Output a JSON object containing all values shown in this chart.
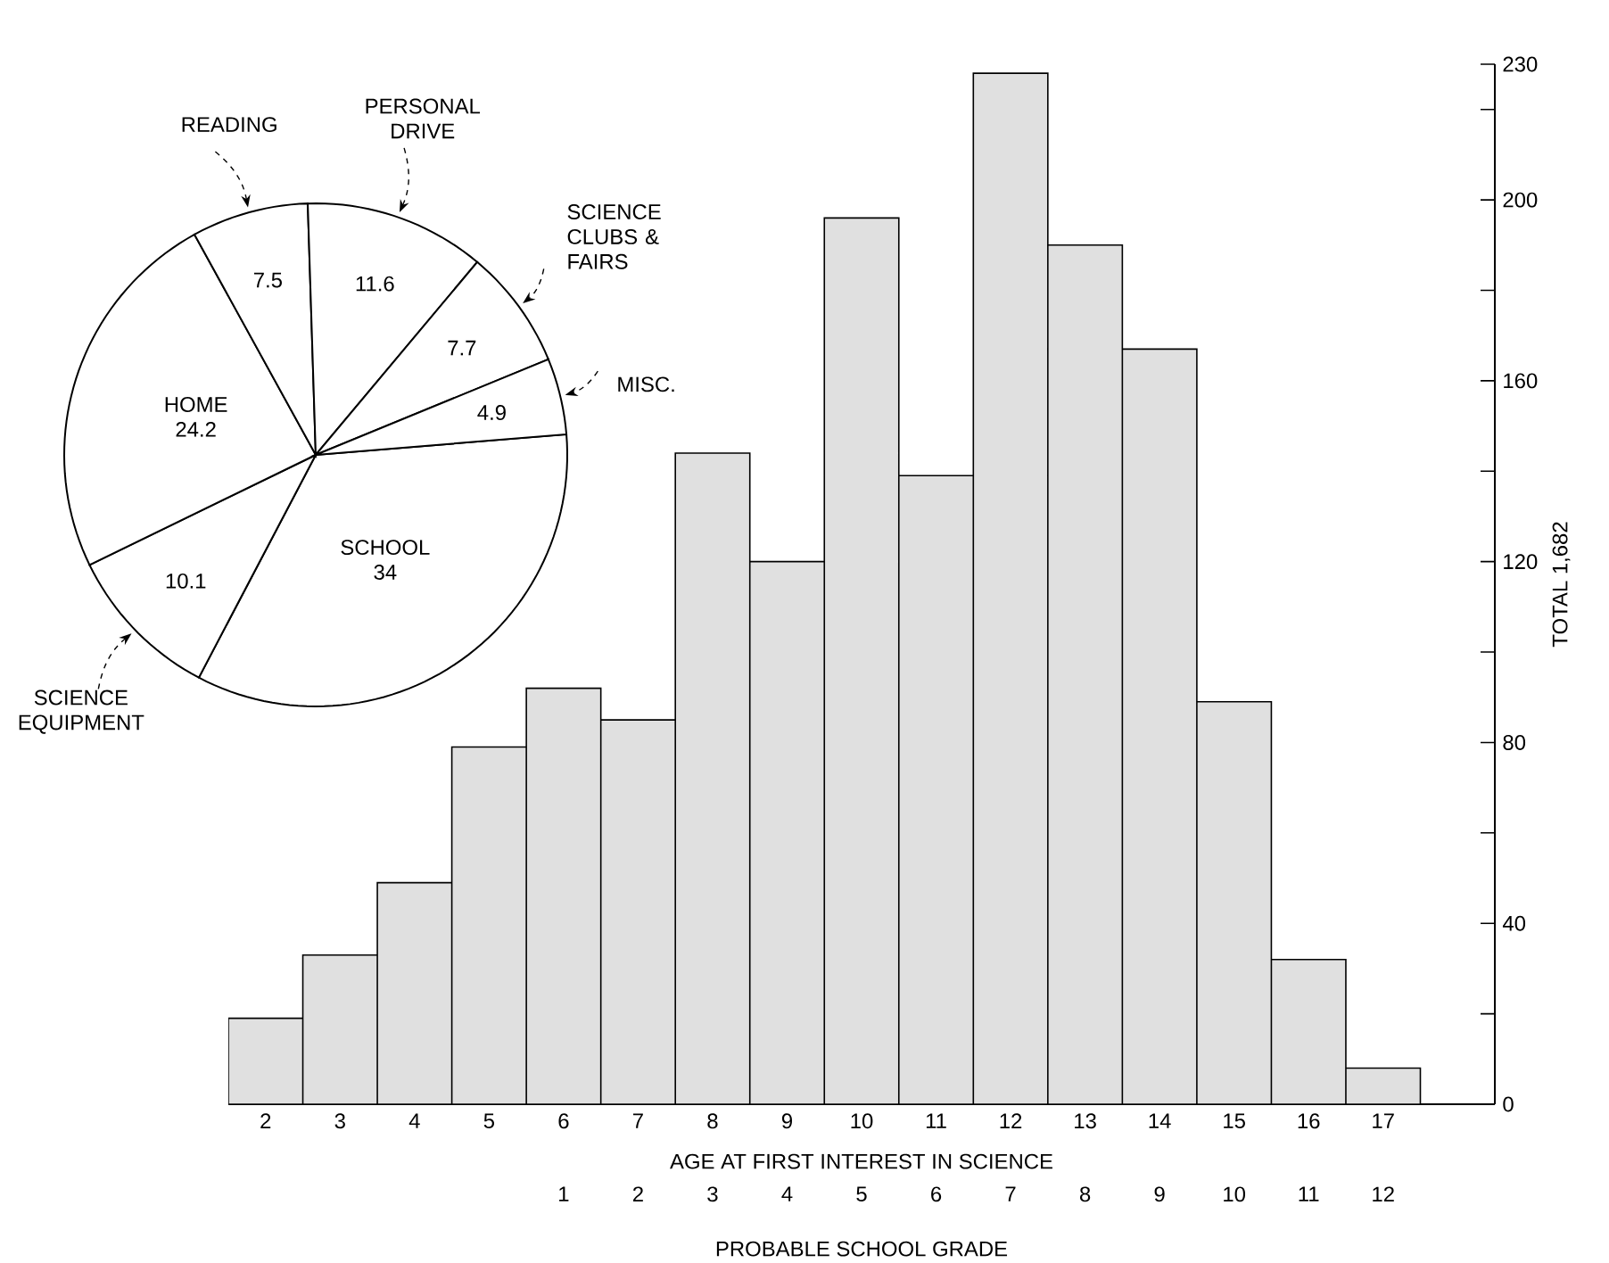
{
  "chart_data": [
    {
      "type": "bar",
      "x": [
        2,
        3,
        4,
        5,
        6,
        7,
        8,
        9,
        10,
        11,
        12,
        13,
        14,
        15,
        16,
        17
      ],
      "values": [
        19,
        33,
        49,
        79,
        92,
        85,
        144,
        120,
        196,
        139,
        228,
        190,
        167,
        89,
        32,
        8
      ],
      "color": "#e0e0e0",
      "xlim": [
        1.5,
        18.5
      ],
      "xticks": [
        2,
        3,
        4,
        5,
        6,
        7,
        8,
        9,
        10,
        11,
        12,
        13,
        14,
        15,
        16,
        17
      ],
      "x2lim": [
        -3.5,
        13.5
      ],
      "x2ticks": [
        1,
        2,
        3,
        4,
        5,
        6,
        7,
        8,
        9,
        10,
        11,
        12
      ],
      "ylim": [
        0,
        230
      ],
      "yticks": [
        0,
        {
          "value": 20,
          "label": null
        },
        40,
        {
          "value": 60,
          "label": null
        },
        80,
        {
          "value": 100,
          "label": null
        },
        120,
        {
          "value": 140,
          "label": null
        },
        160,
        {
          "value": 180,
          "label": null
        },
        200,
        {
          "value": 220,
          "label": null
        },
        230
      ],
      "xlabel": "AGE AT FIRST INTEREST IN SCIENCE",
      "x2label": "PROBABLE SCHOOL GRADE",
      "ylabel": "TOTAL 1,682"
    },
    {
      "type": "pie",
      "categories": [
        "SCHOOL",
        "SCIENCE EQUIPMENT",
        "HOME",
        "READING",
        "PERSONAL DRIVE",
        "SCIENCE CLUBS & FAIRS",
        "MISC."
      ],
      "values": [
        34,
        10.1,
        24.2,
        7.5,
        11.6,
        7.7,
        4.9
      ],
      "colors": [
        "#ffffff",
        "#ffffff",
        "#ffffff",
        "#ffffff",
        "#ffffff",
        "#ffffff",
        "#ffffff"
      ],
      "data_labels": true
    }
  ]
}
